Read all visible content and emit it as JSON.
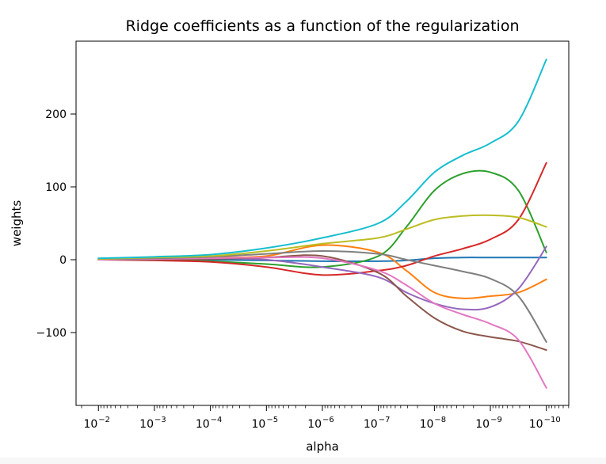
{
  "chart_data": {
    "type": "line",
    "title": "Ridge coefficients as a function of the regularization",
    "xlabel": "alpha",
    "ylabel": "weights",
    "xscale": "log",
    "xaxis_reversed": true,
    "xlim_log10": [
      -1.6,
      -10.4
    ],
    "ylim": [
      -200,
      300
    ],
    "xticks": [
      {
        "exp": -2,
        "label": "10",
        "sup": "−2"
      },
      {
        "exp": -3,
        "label": "10",
        "sup": "−3"
      },
      {
        "exp": -4,
        "label": "10",
        "sup": "−4"
      },
      {
        "exp": -5,
        "label": "10",
        "sup": "−5"
      },
      {
        "exp": -6,
        "label": "10",
        "sup": "−6"
      },
      {
        "exp": -7,
        "label": "10",
        "sup": "−7"
      },
      {
        "exp": -8,
        "label": "10",
        "sup": "−8"
      },
      {
        "exp": -9,
        "label": "10",
        "sup": "−9"
      },
      {
        "exp": -10,
        "label": "10",
        "sup": "−10"
      }
    ],
    "yticks": [
      {
        "value": 200,
        "label": "200"
      },
      {
        "value": 100,
        "label": "100"
      },
      {
        "value": 0,
        "label": "0"
      },
      {
        "value": -100,
        "label": "−100"
      }
    ],
    "grid": false,
    "x_log10": [
      -2,
      -3,
      -4,
      -5,
      -6,
      -7,
      -7.5,
      -8,
      -8.5,
      -9,
      -9.5,
      -10
    ],
    "series": [
      {
        "name": "blue",
        "color": "#1f77b4",
        "values": [
          1,
          1,
          0,
          -1,
          -2,
          -2,
          -1,
          2,
          3,
          3,
          3,
          3
        ]
      },
      {
        "name": "orange",
        "color": "#ff7f0e",
        "values": [
          1,
          2,
          3,
          5,
          20,
          10,
          -15,
          -45,
          -53,
          -50,
          -45,
          -27
        ]
      },
      {
        "name": "green",
        "color": "#2ca02c",
        "values": [
          1,
          0,
          -2,
          -6,
          -10,
          5,
          45,
          95,
          118,
          120,
          95,
          10
        ]
      },
      {
        "name": "red",
        "color": "#d62728",
        "values": [
          0,
          -1,
          -3,
          -10,
          -21,
          -15,
          -8,
          5,
          15,
          28,
          55,
          133
        ]
      },
      {
        "name": "purple",
        "color": "#9467bd",
        "values": [
          0,
          1,
          2,
          0,
          -10,
          -24,
          -45,
          -60,
          -68,
          -65,
          -40,
          18
        ]
      },
      {
        "name": "brown",
        "color": "#8c564b",
        "values": [
          0,
          0,
          1,
          3,
          5,
          -18,
          -50,
          -80,
          -98,
          -106,
          -112,
          -124
        ]
      },
      {
        "name": "pink",
        "color": "#e377c2",
        "values": [
          0,
          1,
          2,
          3,
          2,
          -15,
          -35,
          -60,
          -75,
          -88,
          -110,
          -176
        ]
      },
      {
        "name": "gray",
        "color": "#7f7f7f",
        "values": [
          1,
          2,
          4,
          8,
          12,
          8,
          0,
          -8,
          -16,
          -26,
          -50,
          -113
        ]
      },
      {
        "name": "olive",
        "color": "#bcbd22",
        "values": [
          1,
          3,
          5,
          12,
          22,
          30,
          42,
          55,
          60,
          61,
          58,
          45
        ]
      },
      {
        "name": "cyan",
        "color": "#17becf",
        "values": [
          2,
          4,
          7,
          16,
          30,
          50,
          80,
          120,
          143,
          160,
          190,
          275
        ]
      }
    ]
  }
}
